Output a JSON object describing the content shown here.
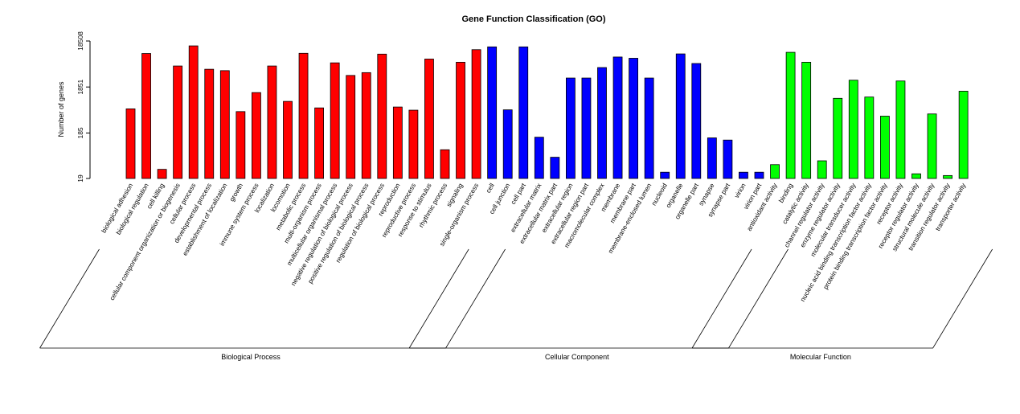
{
  "chart_data": {
    "type": "bar",
    "title": "Gene Function Classification (GO)",
    "ylabel": "Number of genes",
    "y_scale": "log",
    "y_ticks": [
      "19",
      "185",
      "1851",
      "18508"
    ],
    "ylim": [
      19,
      18508
    ],
    "groups": [
      {
        "name": "Biological Process",
        "color": "#ff0000",
        "categories": [
          {
            "label": "biological adhesion",
            "value": 620
          },
          {
            "label": "biological regulation",
            "value": 9900
          },
          {
            "label": "cell killing",
            "value": 30
          },
          {
            "label": "cellular component organization or biogenesis",
            "value": 5300
          },
          {
            "label": "cellular process",
            "value": 14500
          },
          {
            "label": "developmental process",
            "value": 4500
          },
          {
            "label": "establishment of localization",
            "value": 4200
          },
          {
            "label": "growth",
            "value": 540
          },
          {
            "label": "immune system process",
            "value": 1400
          },
          {
            "label": "localization",
            "value": 5300
          },
          {
            "label": "locomotion",
            "value": 900
          },
          {
            "label": "metabolic process",
            "value": 10000
          },
          {
            "label": "multi-organism process",
            "value": 650
          },
          {
            "label": "multicellular organismal process",
            "value": 6200
          },
          {
            "label": "negative regulation of biological process",
            "value": 3300
          },
          {
            "label": "positive regulation of biological process",
            "value": 3800
          },
          {
            "label": "regulation of biological process",
            "value": 9600
          },
          {
            "label": "reproduction",
            "value": 680
          },
          {
            "label": "reproductive process",
            "value": 580
          },
          {
            "label": "response to stimulus",
            "value": 7500
          },
          {
            "label": "rhythmic process",
            "value": 80
          },
          {
            "label": "signaling",
            "value": 6400
          },
          {
            "label": "single-organism process",
            "value": 12000
          }
        ]
      },
      {
        "name": "Cellular Component",
        "color": "#0000ff",
        "categories": [
          {
            "label": "cell",
            "value": 13800
          },
          {
            "label": "cell junction",
            "value": 590
          },
          {
            "label": "cell part",
            "value": 13800
          },
          {
            "label": "extracellular matrix",
            "value": 150
          },
          {
            "label": "extracellular matrix part",
            "value": 55
          },
          {
            "label": "extracellular region",
            "value": 2900
          },
          {
            "label": "extracellular region part",
            "value": 2900
          },
          {
            "label": "macromolecular complex",
            "value": 4900
          },
          {
            "label": "membrane",
            "value": 8300
          },
          {
            "label": "membrane part",
            "value": 7800
          },
          {
            "label": "membrane-enclosed lumen",
            "value": 2900
          },
          {
            "label": "nucleoid",
            "value": 26
          },
          {
            "label": "organelle",
            "value": 9700
          },
          {
            "label": "organelle part",
            "value": 6000
          },
          {
            "label": "synapse",
            "value": 145
          },
          {
            "label": "synapse part",
            "value": 130
          },
          {
            "label": "virion",
            "value": 26
          },
          {
            "label": "virion part",
            "value": 26
          }
        ]
      },
      {
        "name": "Molecular Function",
        "color": "#00ff00",
        "categories": [
          {
            "label": "antioxidant activity",
            "value": 38
          },
          {
            "label": "binding",
            "value": 10500
          },
          {
            "label": "catalytic activity",
            "value": 6400
          },
          {
            "label": "channel regulator activity",
            "value": 46
          },
          {
            "label": "enzyme regulator activity",
            "value": 1050
          },
          {
            "label": "molecular transducer activity",
            "value": 2600
          },
          {
            "label": "nucleic acid binding transcription factor activity",
            "value": 1120
          },
          {
            "label": "protein binding transcription factor activity",
            "value": 430
          },
          {
            "label": "receptor activity",
            "value": 2500
          },
          {
            "label": "receptor regulator activity",
            "value": 24
          },
          {
            "label": "structural molecule activity",
            "value": 480
          },
          {
            "label": "transition regulator activity",
            "value": 22
          },
          {
            "label": "transporter activity",
            "value": 1500
          }
        ]
      }
    ]
  }
}
